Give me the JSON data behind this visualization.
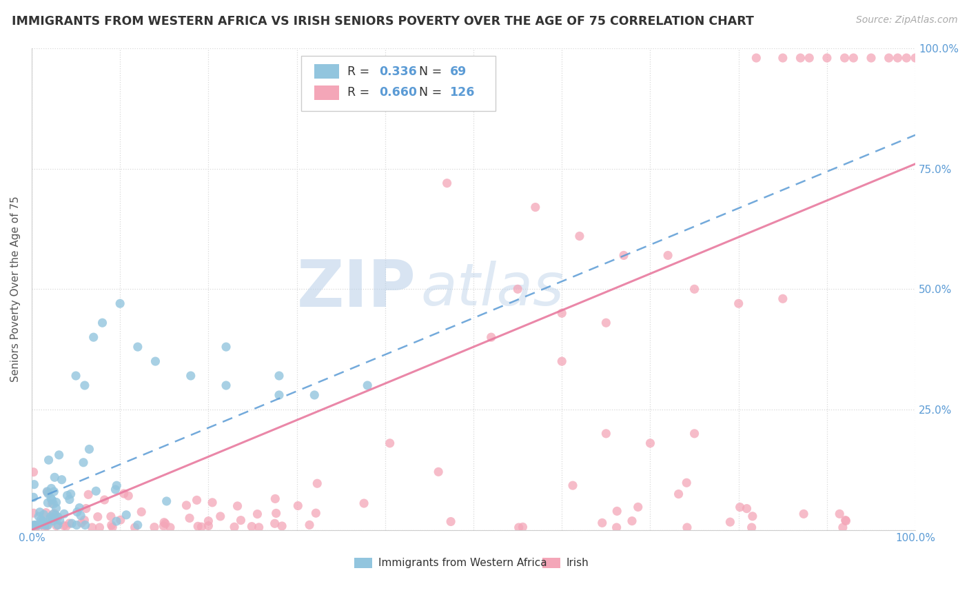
{
  "title": "IMMIGRANTS FROM WESTERN AFRICA VS IRISH SENIORS POVERTY OVER THE AGE OF 75 CORRELATION CHART",
  "source": "Source: ZipAtlas.com",
  "ylabel": "Seniors Poverty Over the Age of 75",
  "xlim": [
    0.0,
    1.0
  ],
  "ylim": [
    0.0,
    1.0
  ],
  "blue_color": "#92c5de",
  "blue_line_color": "#5b9bd5",
  "pink_color": "#f4a6b8",
  "pink_line_color": "#e87a9f",
  "blue_R": 0.336,
  "blue_N": 69,
  "pink_R": 0.66,
  "pink_N": 126,
  "watermark_zip": "ZIP",
  "watermark_atlas": "atlas",
  "background_color": "#ffffff",
  "grid_color": "#d8d8d8",
  "right_tick_color": "#5b9bd5",
  "bottom_tick_color": "#5b9bd5",
  "title_color": "#333333",
  "source_color": "#aaaaaa",
  "legend_edge_color": "#cccccc",
  "blue_trend_x0": 0.0,
  "blue_trend_y0": 0.06,
  "blue_trend_x1": 1.0,
  "blue_trend_y1": 0.82,
  "pink_trend_x0": 0.0,
  "pink_trend_y0": 0.0,
  "pink_trend_x1": 1.0,
  "pink_trend_y1": 0.76
}
